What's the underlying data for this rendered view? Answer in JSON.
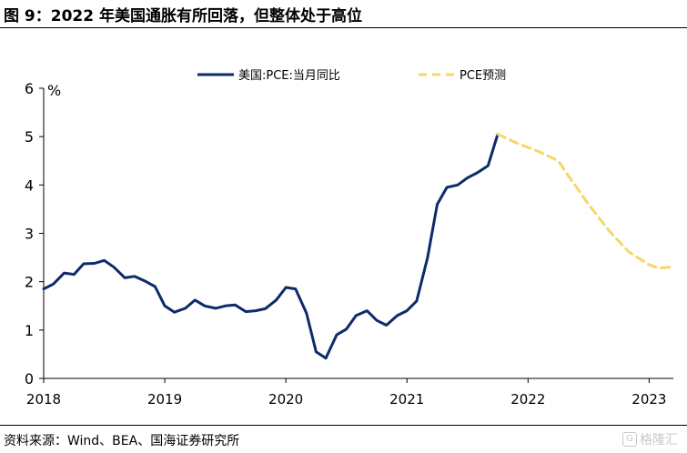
{
  "figure": {
    "title": "图 9：2022 年美国通胀有所回落，但整体处于高位",
    "source": "资料来源：Wind、BEA、国海证券研究所",
    "watermark": "格隆汇"
  },
  "chart_data": {
    "type": "line",
    "title": "",
    "xlabel": "",
    "ylabel": "%",
    "ylim": [
      0,
      6
    ],
    "xlim": [
      2018,
      2023.2
    ],
    "y_ticks": [
      "0",
      "1",
      "2",
      "3",
      "4",
      "5",
      "6"
    ],
    "x_ticks": [
      "2018",
      "2019",
      "2020",
      "2021",
      "2022",
      "2023"
    ],
    "legend_position": "top",
    "grid": false,
    "series": [
      {
        "name": "美国:PCE:当月同比",
        "color": "#0d2a6b",
        "style": "solid",
        "points": [
          [
            2018.0,
            1.85
          ],
          [
            2018.08,
            1.95
          ],
          [
            2018.17,
            2.18
          ],
          [
            2018.25,
            2.15
          ],
          [
            2018.33,
            2.37
          ],
          [
            2018.42,
            2.38
          ],
          [
            2018.5,
            2.44
          ],
          [
            2018.58,
            2.3
          ],
          [
            2018.67,
            2.08
          ],
          [
            2018.75,
            2.11
          ],
          [
            2018.83,
            2.02
          ],
          [
            2018.92,
            1.9
          ],
          [
            2019.0,
            1.5
          ],
          [
            2019.08,
            1.37
          ],
          [
            2019.17,
            1.45
          ],
          [
            2019.25,
            1.62
          ],
          [
            2019.33,
            1.5
          ],
          [
            2019.42,
            1.45
          ],
          [
            2019.5,
            1.5
          ],
          [
            2019.58,
            1.52
          ],
          [
            2019.67,
            1.38
          ],
          [
            2019.75,
            1.4
          ],
          [
            2019.83,
            1.44
          ],
          [
            2019.92,
            1.62
          ],
          [
            2020.0,
            1.88
          ],
          [
            2020.08,
            1.85
          ],
          [
            2020.17,
            1.35
          ],
          [
            2020.25,
            0.55
          ],
          [
            2020.33,
            0.42
          ],
          [
            2020.42,
            0.9
          ],
          [
            2020.5,
            1.02
          ],
          [
            2020.58,
            1.3
          ],
          [
            2020.67,
            1.4
          ],
          [
            2020.75,
            1.2
          ],
          [
            2020.83,
            1.1
          ],
          [
            2020.92,
            1.3
          ],
          [
            2021.0,
            1.4
          ],
          [
            2021.08,
            1.6
          ],
          [
            2021.17,
            2.5
          ],
          [
            2021.25,
            3.6
          ],
          [
            2021.33,
            3.95
          ],
          [
            2021.42,
            4.0
          ],
          [
            2021.5,
            4.15
          ],
          [
            2021.58,
            4.25
          ],
          [
            2021.67,
            4.4
          ],
          [
            2021.75,
            5.05
          ]
        ]
      },
      {
        "name": "PCE预测",
        "color": "#f5d76b",
        "style": "dashed",
        "points": [
          [
            2021.75,
            5.05
          ],
          [
            2021.92,
            4.85
          ],
          [
            2022.08,
            4.7
          ],
          [
            2022.25,
            4.5
          ],
          [
            2022.33,
            4.2
          ],
          [
            2022.5,
            3.6
          ],
          [
            2022.67,
            3.05
          ],
          [
            2022.83,
            2.62
          ],
          [
            2023.0,
            2.35
          ],
          [
            2023.08,
            2.28
          ],
          [
            2023.17,
            2.3
          ]
        ]
      }
    ]
  }
}
